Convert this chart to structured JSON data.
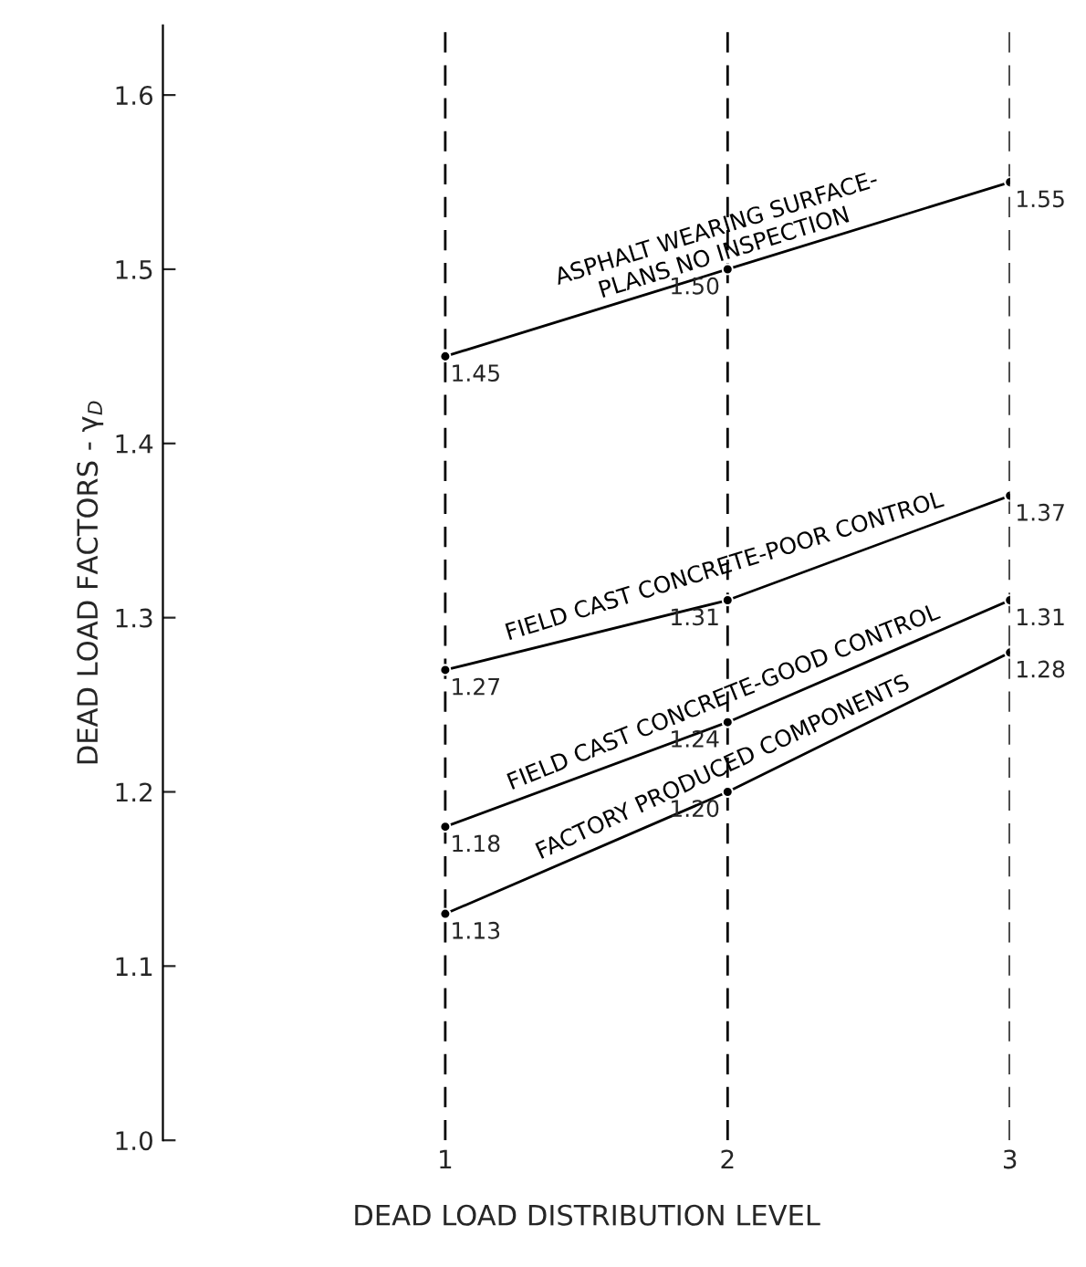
{
  "chart_data": {
    "type": "line",
    "xlabel": "DEAD LOAD DISTRIBUTION LEVEL",
    "ylabel": "DEAD LOAD FACTORS - γ$_{D}$",
    "x": [
      1,
      2,
      3
    ],
    "series": [
      {
        "name": "ASPHALT WEARING SURFACE-\nPLANS NO INSPECTION",
        "color": "#000000",
        "values": [
          1.45,
          1.5,
          1.55
        ],
        "value_labels": [
          "1.45",
          "1.50",
          "1.55"
        ]
      },
      {
        "name": "FIELD CAST CONCRETE-POOR CONTROL",
        "color": "#000000",
        "values": [
          1.27,
          1.31,
          1.37
        ],
        "value_labels": [
          "1.27",
          "1.31",
          "1.37"
        ]
      },
      {
        "name": "FIELD CAST CONCRETE-GOOD CONTROL",
        "color": "#000000",
        "values": [
          1.18,
          1.24,
          1.31
        ],
        "value_labels": [
          "1.18",
          "1.24",
          "1.31"
        ]
      },
      {
        "name": "FACTORY PRODUCED COMPONENTS",
        "color": "#000000",
        "values": [
          1.13,
          1.2,
          1.28
        ],
        "value_labels": [
          "1.13",
          "1.20",
          "1.28"
        ]
      }
    ],
    "xlim": [
      0,
      3
    ],
    "ylim": [
      1.0,
      1.64
    ],
    "xticks": [
      1,
      2,
      3
    ],
    "yticks": [
      {
        "value": 1.0,
        "label": "1.0"
      },
      1.1,
      1.2,
      1.3,
      1.4,
      1.5,
      1.6
    ],
    "grid": "x",
    "line_style": "solid",
    "marker": "circle"
  }
}
